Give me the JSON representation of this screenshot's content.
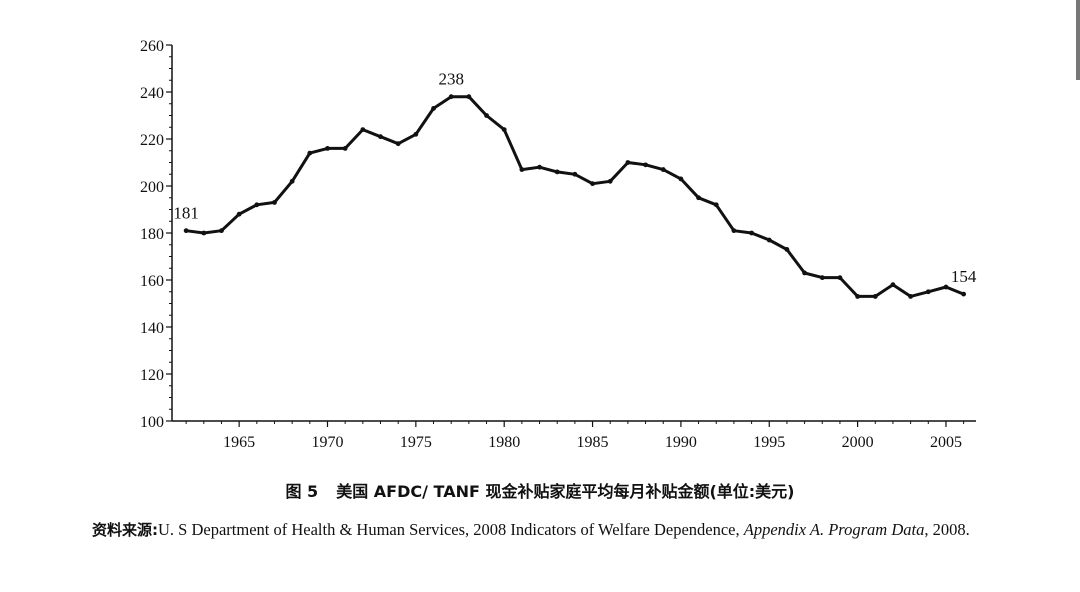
{
  "chart_data": {
    "type": "line",
    "x": [
      1962,
      1963,
      1964,
      1965,
      1966,
      1967,
      1968,
      1969,
      1970,
      1971,
      1972,
      1973,
      1974,
      1975,
      1976,
      1977,
      1978,
      1979,
      1980,
      1981,
      1982,
      1983,
      1984,
      1985,
      1986,
      1987,
      1988,
      1989,
      1990,
      1991,
      1992,
      1993,
      1994,
      1995,
      1996,
      1997,
      1998,
      1999,
      2000,
      2001,
      2002,
      2003,
      2004,
      2005,
      2006
    ],
    "values": [
      181,
      180,
      181,
      188,
      192,
      193,
      202,
      214,
      216,
      216,
      224,
      221,
      218,
      222,
      233,
      238,
      238,
      230,
      224,
      207,
      208,
      206,
      205,
      201,
      202,
      210,
      209,
      207,
      203,
      195,
      192,
      181,
      180,
      177,
      173,
      163,
      161,
      161,
      153,
      153,
      158,
      153,
      155,
      157,
      154
    ],
    "ylim": [
      100,
      260
    ],
    "xlim": [
      1961.2,
      2006.7
    ],
    "yticks": [
      100,
      120,
      140,
      160,
      180,
      200,
      220,
      240,
      260
    ],
    "xticks": [
      1965,
      1970,
      1975,
      1980,
      1985,
      1990,
      1995,
      2000,
      2005
    ],
    "annotations": [
      {
        "x": 1962,
        "value": 181,
        "text": "181"
      },
      {
        "x": 1977,
        "value": 238,
        "text": "238"
      },
      {
        "x": 2006,
        "value": 154,
        "text": "154"
      }
    ],
    "grid": false,
    "title": "",
    "xlabel": "",
    "ylabel": ""
  },
  "caption": {
    "figure_number": "图 5",
    "title": "美国 AFDC/ TANF 现金补贴家庭平均每月补贴金额(单位:美元)"
  },
  "source": {
    "label": "资料来源:",
    "text": "U. S Department of Health & Human Services, 2008 Indicators of Welfare Dependence, ",
    "appendix": "Appendix A. Program Data",
    "year": ", 2008."
  }
}
